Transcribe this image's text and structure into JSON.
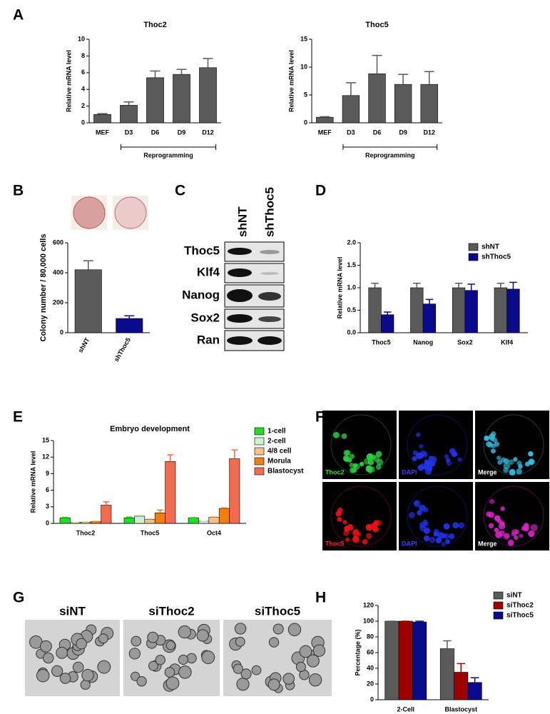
{
  "chart_data": [
    {
      "type": "bar",
      "title": "Thoc2",
      "y_label": "Relative mRNA level",
      "annotation": "Reprogramming",
      "categories": [
        "MEF",
        "D3",
        "D6",
        "D9",
        "D12"
      ],
      "series": [
        {
          "color": "#5a5a5a",
          "values": [
            1.0,
            2.1,
            5.4,
            5.8,
            6.6
          ],
          "errors": [
            0.1,
            0.4,
            0.8,
            0.6,
            1.1
          ]
        }
      ],
      "ylim": [
        0,
        10
      ],
      "yticks": [
        0,
        2,
        4,
        6,
        8,
        10
      ]
    },
    {
      "type": "bar",
      "title": "Thoc5",
      "y_label": "Relative mRNA level",
      "annotation": "Reprogramming",
      "categories": [
        "MEF",
        "D3",
        "D6",
        "D9",
        "D12"
      ],
      "series": [
        {
          "color": "#5a5a5a",
          "values": [
            1.0,
            4.9,
            8.8,
            6.9,
            6.9
          ],
          "errors": [
            0.1,
            2.3,
            3.3,
            1.8,
            2.3
          ]
        }
      ],
      "ylim": [
        0,
        15
      ],
      "yticks": [
        0,
        5,
        10,
        15
      ]
    },
    {
      "type": "bar",
      "y_label": "Colony number / 80,000 cells",
      "categories": [
        "shNT",
        "shThoc5"
      ],
      "series": [
        {
          "colors": [
            "#5a5a5a",
            "#0a0a8c"
          ],
          "values": [
            420,
            95
          ],
          "errors": [
            60,
            18
          ]
        }
      ],
      "ylim": [
        0,
        600
      ],
      "yticks": [
        0,
        200,
        400,
        600
      ]
    },
    {
      "type": "bar",
      "y_label": "Relative mRNA level",
      "legend": "upper right",
      "categories": [
        "Thoc5",
        "Nanog",
        "Sox2",
        "Klf4"
      ],
      "series": [
        {
          "name": "shNT",
          "color": "#5a5a5a",
          "values": [
            1.0,
            1.0,
            1.0,
            1.0
          ],
          "errors": [
            0.1,
            0.1,
            0.1,
            0.1
          ]
        },
        {
          "name": "shThoc5",
          "color": "#0a0a8c",
          "values": [
            0.4,
            0.64,
            0.94,
            0.97
          ],
          "errors": [
            0.06,
            0.1,
            0.14,
            0.15
          ]
        }
      ],
      "ylim": [
        0,
        2
      ],
      "yticks": [
        {
          "value": 0,
          "label": "0.0"
        },
        0.5,
        {
          "value": 1,
          "label": "1.0"
        },
        1.5,
        {
          "value": 2,
          "label": "2.0"
        }
      ]
    },
    {
      "type": "bar",
      "title": "Embryo development",
      "y_label": "Relative mRNA level",
      "legend": "right",
      "categories": [
        "Thoc2",
        "Thoc5",
        "Oct4"
      ],
      "series": [
        {
          "name": "1-cell",
          "color": "#22dd22",
          "values": [
            1.0,
            1.0,
            1.0
          ],
          "errors": [
            0.1,
            0.15,
            0.05
          ]
        },
        {
          "name": "2-cell",
          "color": "#cdf2cd",
          "values": [
            0.15,
            1.3,
            0.4
          ],
          "errors": [
            0.05,
            0.2,
            0.05
          ]
        },
        {
          "name": "4/8 cell",
          "color": "#f5c08a",
          "values": [
            0.2,
            0.7,
            1.1
          ],
          "errors": [
            0.05,
            0.1,
            0.1
          ]
        },
        {
          "name": "Morula",
          "color": "#f07f10",
          "values": [
            0.3,
            1.9,
            2.7
          ],
          "errors": [
            0.05,
            0.5,
            0.1
          ]
        },
        {
          "name": "Blastocyst",
          "color": "#f26a4f",
          "values": [
            3.3,
            11.2,
            11.7
          ],
          "errors": [
            0.6,
            1.2,
            1.6
          ]
        }
      ],
      "ylim": [
        0,
        15
      ],
      "yticks": [
        0,
        3,
        6,
        9,
        12,
        15
      ]
    },
    {
      "type": "bar",
      "y_label": "Percentage (%)",
      "legend": "upper right",
      "categories": [
        "2-Cell",
        "Blastocyst"
      ],
      "series": [
        {
          "name": "siNT",
          "color": "#5a5a5a",
          "values": [
            100,
            65
          ],
          "errors": [
            0,
            10
          ]
        },
        {
          "name": "siThoc2",
          "color": "#a00000",
          "values": [
            100,
            35
          ],
          "errors": [
            0,
            11
          ]
        },
        {
          "name": "siThoc5",
          "color": "#0a0a8c",
          "values": [
            99,
            22
          ],
          "errors": [
            1,
            6
          ]
        }
      ],
      "ylim": [
        0,
        120
      ],
      "yticks": [
        0,
        20,
        40,
        60,
        80,
        100,
        120
      ]
    }
  ],
  "panel_labels": [
    "A",
    "B",
    "C",
    "D",
    "E",
    "F",
    "G",
    "H"
  ],
  "western_blot": {
    "columns": [
      "shNT",
      "shThoc5"
    ],
    "rows": [
      "Thoc5",
      "Klf4",
      "Nanog",
      "Sox2",
      "Ran"
    ]
  },
  "immunofluorescence": {
    "labels": [
      "Thoc2",
      "DAPI",
      "Merge",
      "Thoc5",
      "DAPI",
      "Merge"
    ]
  },
  "embryo_images": {
    "labels": [
      "siNT",
      "siThoc2",
      "siThoc5"
    ]
  }
}
